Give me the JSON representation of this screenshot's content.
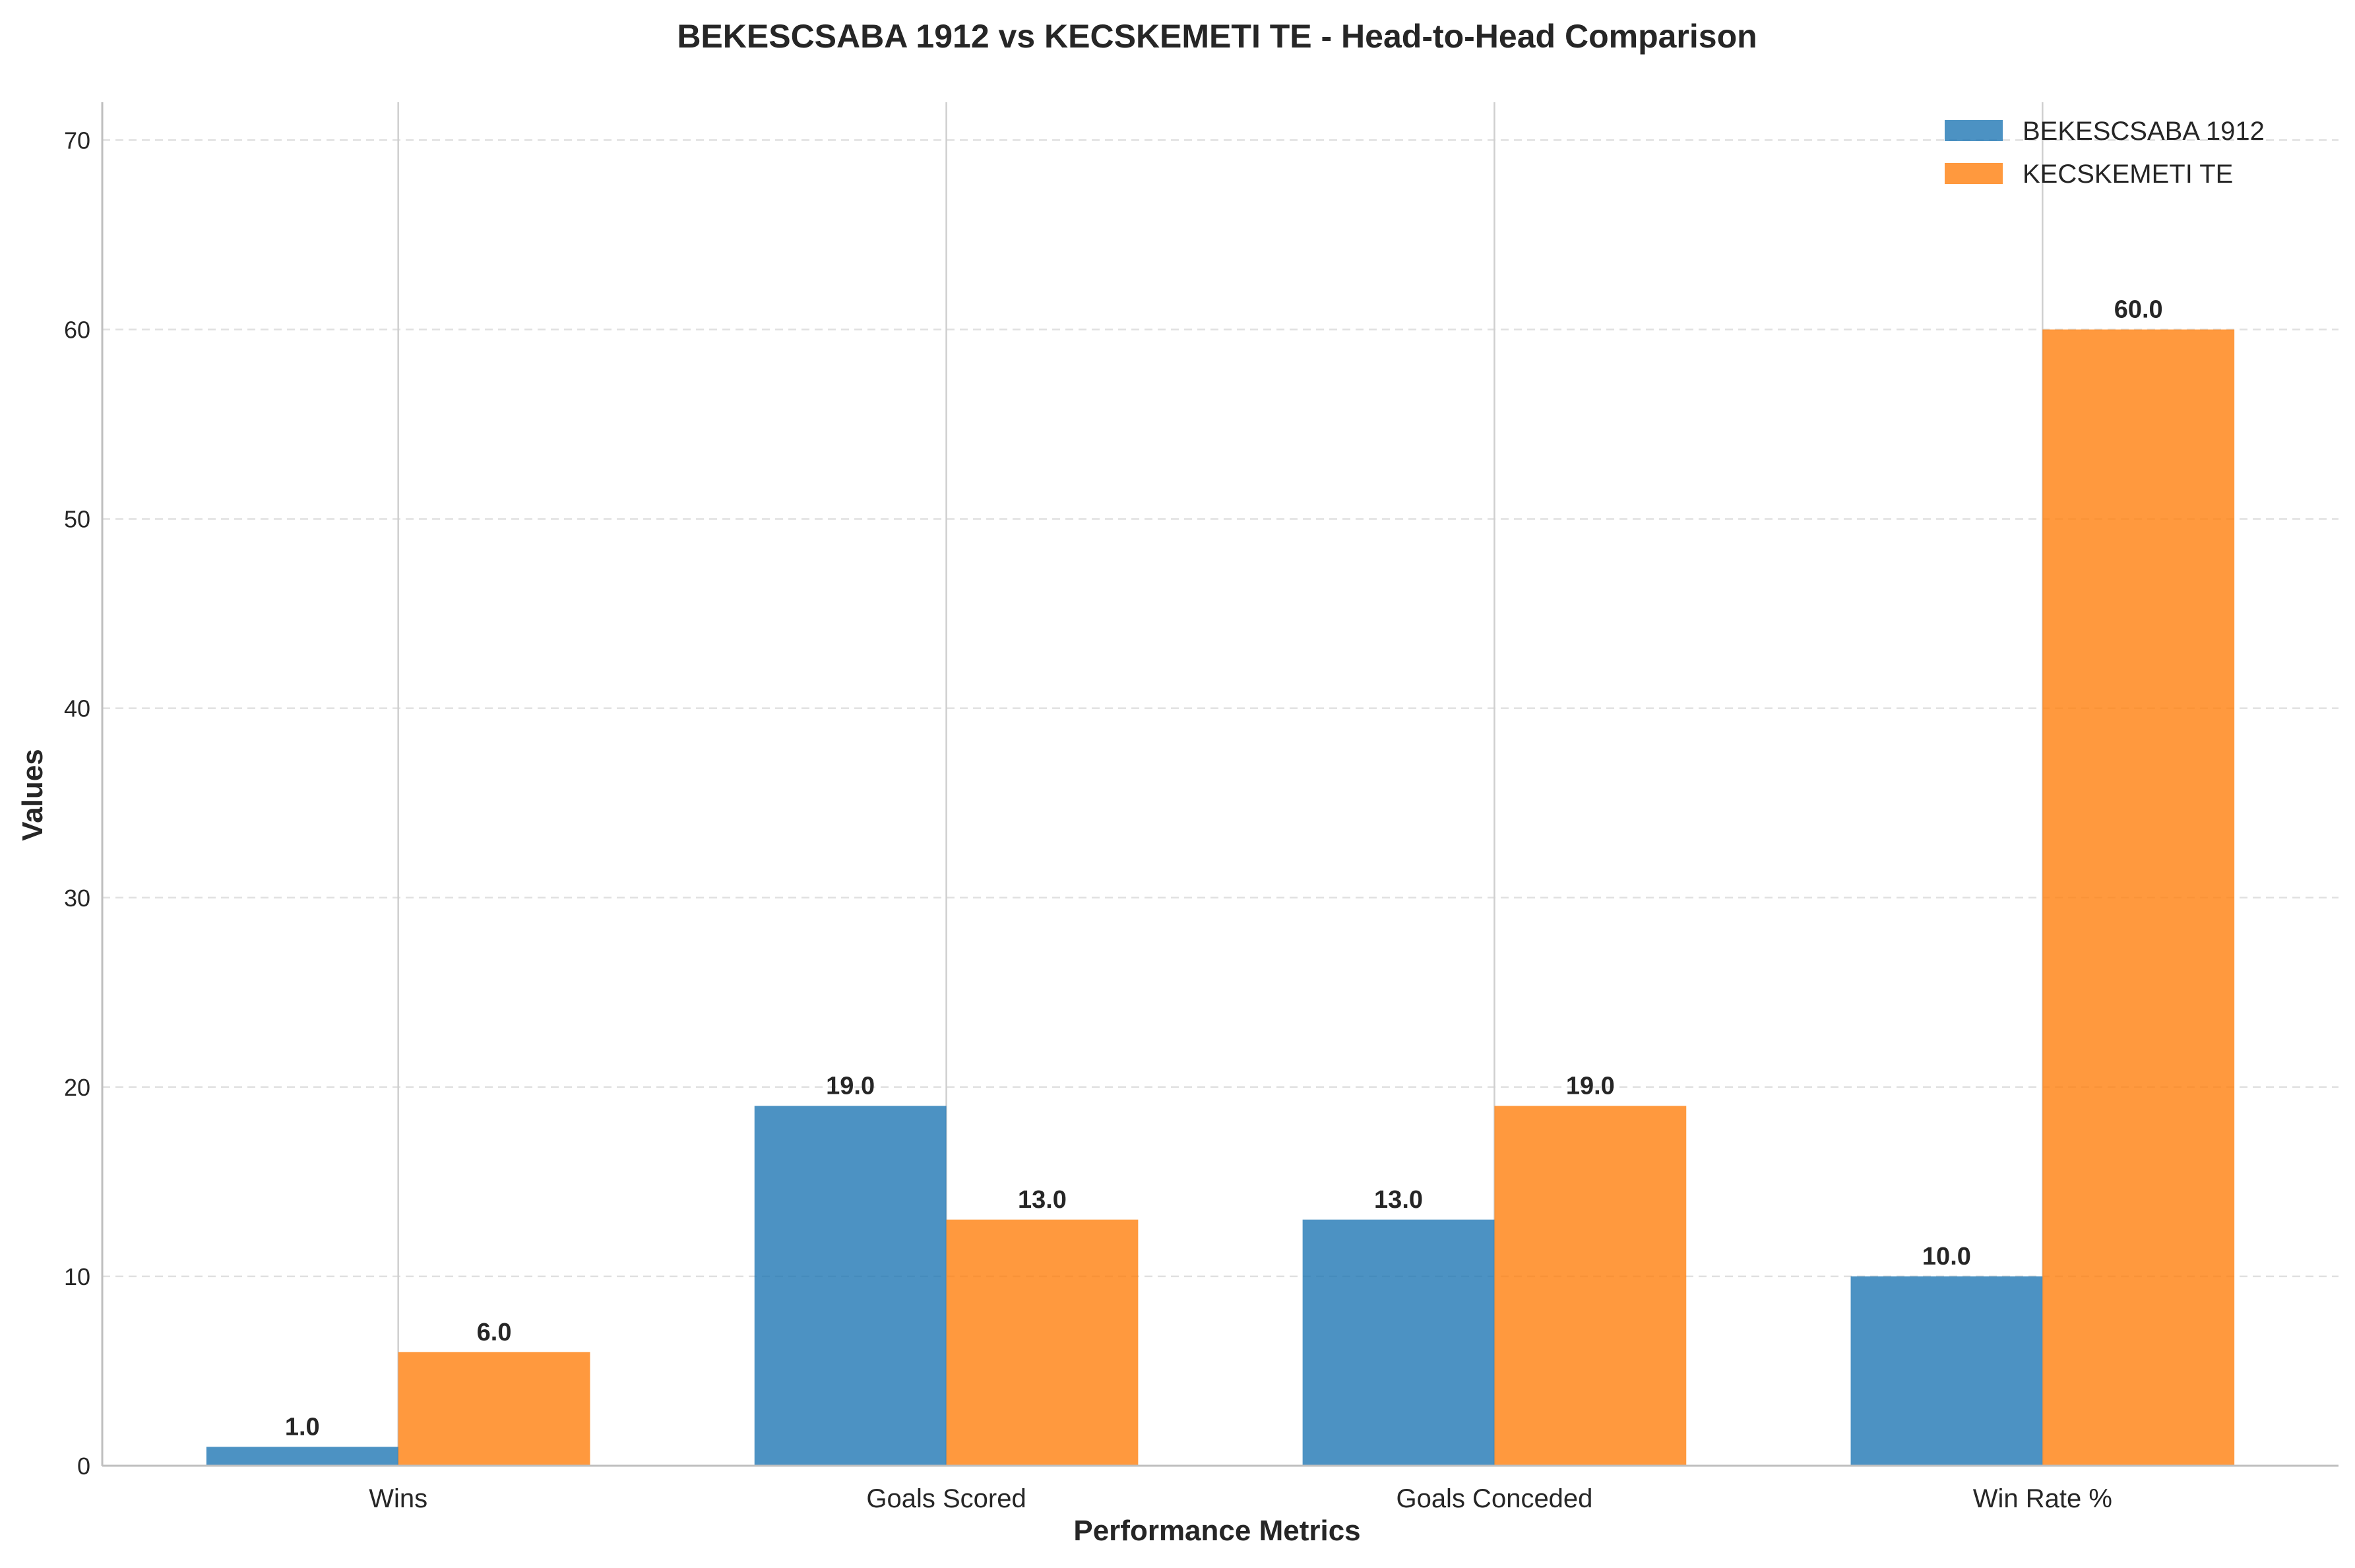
{
  "chart_data": {
    "type": "bar",
    "title": "BEKESCSABA 1912 vs KECSKEMETI TE - Head-to-Head Comparison",
    "xlabel": "Performance Metrics",
    "ylabel": "Values",
    "categories": [
      "Wins",
      "Goals Scored",
      "Goals Conceded",
      "Win Rate %"
    ],
    "series": [
      {
        "name": "BEKESCSABA 1912",
        "color": "#1f77b4",
        "values": [
          1.0,
          19.0,
          13.0,
          10.0
        ]
      },
      {
        "name": "KECSKEMETI TE",
        "color": "#ff7f0e",
        "values": [
          6.0,
          13.0,
          19.0,
          60.0
        ]
      }
    ],
    "ylim": [
      0,
      72
    ],
    "yticks": [
      0,
      10,
      20,
      30,
      40,
      50,
      60,
      70
    ],
    "value_label_format": "0.0",
    "legend_position": "top-right",
    "grid": {
      "y": "dashed",
      "x": "solid at category centers"
    }
  }
}
